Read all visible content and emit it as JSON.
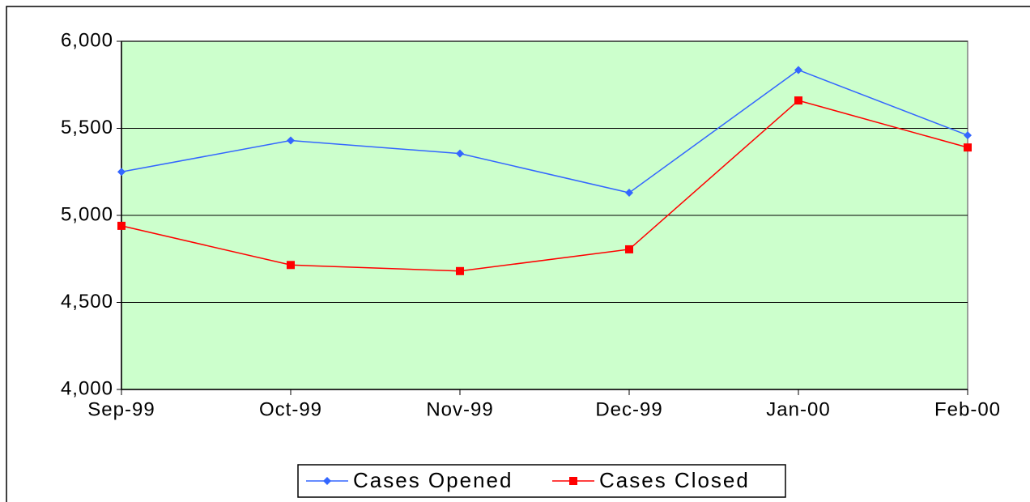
{
  "chart_data": {
    "type": "line",
    "categories": [
      "Sep-99",
      "Oct-99",
      "Nov-99",
      "Dec-99",
      "Jan-00",
      "Feb-00"
    ],
    "series": [
      {
        "name": "Cases Opened",
        "color": "#3366ff",
        "marker": "diamond",
        "values": [
          5250,
          5430,
          5355,
          5130,
          5835,
          5460
        ]
      },
      {
        "name": "Cases Closed",
        "color": "#ff0000",
        "marker": "square",
        "values": [
          4940,
          4715,
          4680,
          4805,
          5660,
          5390
        ]
      }
    ],
    "ylim": [
      4000,
      6000
    ],
    "yticks": [
      {
        "value": 4000,
        "label": "4,000"
      },
      {
        "value": 4500,
        "label": "4,500"
      },
      {
        "value": 5000,
        "label": "5,000"
      },
      {
        "value": 5500,
        "label": "5,500"
      },
      {
        "value": 6000,
        "label": "6,000"
      }
    ],
    "grid": true,
    "legend": "bottom",
    "plot_background": "#ccffcc"
  }
}
